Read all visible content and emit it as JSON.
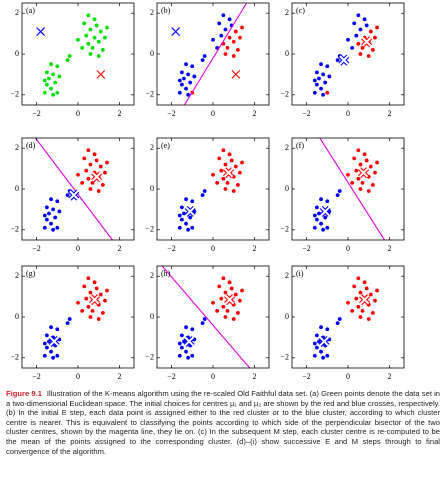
{
  "chart_data": [
    {
      "type": "scatter",
      "label": "(a)",
      "xlim": [
        -2.7,
        2.7
      ],
      "ylim": [
        -2.5,
        2.5
      ],
      "xticks": [
        {
          "value": -2,
          "label": "−2"
        },
        0,
        2
      ],
      "yticks": [
        {
          "value": -2,
          "label": "−2"
        },
        0,
        2
      ],
      "series": [
        {
          "color": "#00e000",
          "x": [
            -1.6,
            -1.5,
            -1.4,
            -1.3,
            -1.2,
            -1.1,
            -1.5,
            -1.0,
            -1.3,
            -0.9,
            -1.6,
            -1.2,
            -1.0,
            -0.5,
            -0.4,
            0.2,
            0.4,
            0.5,
            0.6,
            0.7,
            0.8,
            0.9,
            1.0,
            1.1,
            1.2,
            0.3,
            0.6,
            0.8,
            1.3,
            0.0,
            1.0,
            0.5,
            1.4
          ],
          "values": [
            -1.9,
            -1.5,
            -1.2,
            -1.7,
            -1.0,
            -1.4,
            -0.9,
            -0.6,
            -0.5,
            -1.1,
            -1.3,
            -2.0,
            -1.9,
            -0.3,
            -0.1,
            0.3,
            0.9,
            0.5,
            1.2,
            0.3,
            0.8,
            1.4,
            0.6,
            1.1,
            0.2,
            1.5,
            0.0,
            1.7,
            0.8,
            0.7,
            -0.1,
            1.9,
            1.3
          ]
        }
      ],
      "centre_style": "plain",
      "centres": [
        {
          "color": "#0000ff",
          "x": -1.8,
          "y": 1.1
        },
        {
          "color": "#ff0000",
          "x": 1.1,
          "y": -1.0
        }
      ]
    },
    {
      "type": "scatter",
      "label": "(b)",
      "xlim": [
        -2.7,
        2.7
      ],
      "ylim": [
        -2.5,
        2.5
      ],
      "xticks": [
        {
          "value": -2,
          "label": "−2"
        },
        0,
        2
      ],
      "yticks": [
        {
          "value": -2,
          "label": "−2"
        },
        0,
        2
      ],
      "series": [
        {
          "color": "#0000ff",
          "x": [
            -1.6,
            -1.5,
            -1.4,
            -1.3,
            -1.2,
            -1.1,
            -1.5,
            -1.0,
            -1.3,
            -0.9,
            -1.6,
            -1.2,
            -0.5,
            -0.4,
            0.2,
            0.4,
            0.6,
            0.9,
            0.3,
            0.8,
            0.0,
            0.5
          ],
          "values": [
            -1.9,
            -1.5,
            -1.2,
            -1.7,
            -1.0,
            -1.4,
            -0.9,
            -0.6,
            -0.5,
            -1.1,
            -1.3,
            -2.0,
            -0.3,
            -0.1,
            0.3,
            0.9,
            1.2,
            1.4,
            1.5,
            1.7,
            0.7,
            1.9
          ]
        },
        {
          "color": "#ff0000",
          "x": [
            -1.0,
            0.5,
            0.7,
            0.8,
            1.0,
            1.1,
            1.2,
            0.6,
            1.3,
            1.0,
            1.4
          ],
          "values": [
            -1.9,
            0.5,
            0.3,
            0.8,
            0.6,
            1.1,
            0.2,
            0.0,
            0.8,
            -0.1,
            1.3
          ]
        }
      ],
      "line": {
        "color": "#e000e0",
        "x": [
          -1.38,
          1.62
        ],
        "values": [
          -2.5,
          2.5
        ]
      },
      "centre_style": "plain",
      "centres": [
        {
          "color": "#0000ff",
          "x": -1.8,
          "y": 1.1
        },
        {
          "color": "#ff0000",
          "x": 1.1,
          "y": -1.0
        }
      ]
    },
    {
      "type": "scatter",
      "label": "(c)",
      "xlim": [
        -2.7,
        2.7
      ],
      "ylim": [
        -2.5,
        2.5
      ],
      "xticks": [
        {
          "value": -2,
          "label": "−2"
        },
        0,
        2
      ],
      "yticks": [
        {
          "value": -2,
          "label": "−2"
        },
        0,
        2
      ],
      "series": [
        {
          "color": "#0000ff",
          "x": [
            -1.6,
            -1.5,
            -1.4,
            -1.3,
            -1.2,
            -1.1,
            -1.5,
            -1.0,
            -1.3,
            -0.9,
            -1.6,
            -1.2,
            -0.5,
            -0.4,
            0.2,
            0.4,
            0.6,
            0.9,
            0.3,
            0.8,
            0.0,
            0.5
          ],
          "values": [
            -1.9,
            -1.5,
            -1.2,
            -1.7,
            -1.0,
            -1.4,
            -0.9,
            -0.6,
            -0.5,
            -1.1,
            -1.3,
            -2.0,
            -0.3,
            -0.1,
            0.3,
            0.9,
            1.2,
            1.4,
            1.5,
            1.7,
            0.7,
            1.9
          ]
        },
        {
          "color": "#ff0000",
          "x": [
            -1.0,
            0.5,
            0.7,
            0.8,
            1.0,
            1.1,
            1.2,
            0.6,
            1.3,
            1.0,
            1.4
          ],
          "values": [
            -1.9,
            0.5,
            0.3,
            0.8,
            0.6,
            1.1,
            0.2,
            0.0,
            0.8,
            -0.1,
            1.3
          ]
        }
      ],
      "centre_style": "outlined",
      "centres": [
        {
          "color": "#0000ff",
          "x": -0.2,
          "y": -0.3
        },
        {
          "color": "#ff0000",
          "x": 0.9,
          "y": 0.6
        }
      ]
    },
    {
      "type": "scatter",
      "label": "(d)",
      "xlim": [
        -2.7,
        2.7
      ],
      "ylim": [
        -2.5,
        2.5
      ],
      "xticks": [
        {
          "value": -2,
          "label": "−2"
        },
        0,
        2
      ],
      "yticks": [
        {
          "value": -2,
          "label": "−2"
        },
        0,
        2
      ],
      "series": [
        {
          "color": "#0000ff",
          "x": [
            -1.6,
            -1.5,
            -1.4,
            -1.3,
            -1.2,
            -1.1,
            -1.5,
            -1.0,
            -1.3,
            -0.9,
            -1.6,
            -1.2,
            -1.0,
            -0.5,
            -0.4
          ],
          "values": [
            -1.9,
            -1.5,
            -1.2,
            -1.7,
            -1.0,
            -1.4,
            -0.9,
            -0.6,
            -0.5,
            -1.1,
            -1.3,
            -2.0,
            -1.9,
            -0.3,
            -0.1
          ]
        },
        {
          "color": "#ff0000",
          "x": [
            0.2,
            0.4,
            0.5,
            0.6,
            0.7,
            0.8,
            0.9,
            1.0,
            1.1,
            1.2,
            0.3,
            0.6,
            0.8,
            1.3,
            0.0,
            1.0,
            0.5,
            1.4
          ],
          "values": [
            0.3,
            0.9,
            0.5,
            1.2,
            0.3,
            0.8,
            1.4,
            0.6,
            1.1,
            0.2,
            1.5,
            0.0,
            1.7,
            0.8,
            0.7,
            -0.1,
            1.9,
            1.3
          ]
        }
      ],
      "line": {
        "color": "#e000e0",
        "x": [
          -2.05,
          1.66
        ],
        "values": [
          2.5,
          -2.5
        ]
      },
      "centre_style": "outlined",
      "centres": [
        {
          "color": "#0000ff",
          "x": -0.2,
          "y": -0.3
        },
        {
          "color": "#ff0000",
          "x": 0.9,
          "y": 0.6
        }
      ]
    },
    {
      "type": "scatter",
      "label": "(e)",
      "xlim": [
        -2.7,
        2.7
      ],
      "ylim": [
        -2.5,
        2.5
      ],
      "xticks": [
        {
          "value": -2,
          "label": "−2"
        },
        0,
        2
      ],
      "yticks": [
        {
          "value": -2,
          "label": "−2"
        },
        0,
        2
      ],
      "series": [
        {
          "color": "#0000ff",
          "x": [
            -1.6,
            -1.5,
            -1.4,
            -1.3,
            -1.2,
            -1.1,
            -1.5,
            -1.0,
            -1.3,
            -0.9,
            -1.6,
            -1.2,
            -1.0,
            -0.5,
            -0.4
          ],
          "values": [
            -1.9,
            -1.5,
            -1.2,
            -1.7,
            -1.0,
            -1.4,
            -0.9,
            -0.6,
            -0.5,
            -1.1,
            -1.3,
            -2.0,
            -1.9,
            -0.3,
            -0.1
          ]
        },
        {
          "color": "#ff0000",
          "x": [
            0.2,
            0.4,
            0.5,
            0.6,
            0.7,
            0.8,
            0.9,
            1.0,
            1.1,
            1.2,
            0.3,
            0.6,
            0.8,
            1.3,
            0.0,
            1.0,
            0.5,
            1.4
          ],
          "values": [
            0.3,
            0.9,
            0.5,
            1.2,
            0.3,
            0.8,
            1.4,
            0.6,
            1.1,
            0.2,
            1.5,
            0.0,
            1.7,
            0.8,
            0.7,
            -0.1,
            1.9,
            1.3
          ]
        }
      ],
      "centre_style": "outlined",
      "centres": [
        {
          "color": "#0000ff",
          "x": -1.1,
          "y": -1.1
        },
        {
          "color": "#ff0000",
          "x": 0.75,
          "y": 0.8
        }
      ]
    },
    {
      "type": "scatter",
      "label": "(f)",
      "xlim": [
        -2.7,
        2.7
      ],
      "ylim": [
        -2.5,
        2.5
      ],
      "xticks": [
        {
          "value": -2,
          "label": "−2"
        },
        0,
        2
      ],
      "yticks": [
        {
          "value": -2,
          "label": "−2"
        },
        0,
        2
      ],
      "series": [
        {
          "color": "#0000ff",
          "x": [
            -1.6,
            -1.5,
            -1.4,
            -1.3,
            -1.2,
            -1.1,
            -1.5,
            -1.0,
            -1.3,
            -0.9,
            -1.6,
            -1.2,
            -1.0,
            -0.5,
            -0.4
          ],
          "values": [
            -1.9,
            -1.5,
            -1.2,
            -1.7,
            -1.0,
            -1.4,
            -0.9,
            -0.6,
            -0.5,
            -1.1,
            -1.3,
            -2.0,
            -1.9,
            -0.3,
            -0.1
          ]
        },
        {
          "color": "#ff0000",
          "x": [
            0.2,
            0.4,
            0.5,
            0.6,
            0.7,
            0.8,
            0.9,
            1.0,
            1.1,
            1.2,
            0.3,
            0.6,
            0.8,
            1.3,
            0.0,
            1.0,
            0.5,
            1.4
          ],
          "values": [
            0.3,
            0.9,
            0.5,
            1.2,
            0.3,
            0.8,
            1.4,
            0.6,
            1.1,
            0.2,
            1.5,
            0.0,
            1.7,
            0.8,
            0.7,
            -0.1,
            1.9,
            1.3
          ]
        }
      ],
      "line": {
        "color": "#e000e0",
        "x": [
          -1.36,
          1.76
        ],
        "values": [
          2.5,
          -2.5
        ]
      },
      "centre_style": "outlined",
      "centres": [
        {
          "color": "#0000ff",
          "x": -1.1,
          "y": -1.1
        },
        {
          "color": "#ff0000",
          "x": 0.75,
          "y": 0.8
        }
      ]
    },
    {
      "type": "scatter",
      "label": "(g)",
      "xlim": [
        -2.7,
        2.7
      ],
      "ylim": [
        -2.5,
        2.5
      ],
      "xticks": [
        {
          "value": -2,
          "label": "−2"
        },
        0,
        2
      ],
      "yticks": [
        {
          "value": -2,
          "label": "−2"
        },
        0,
        2
      ],
      "series": [
        {
          "color": "#0000ff",
          "x": [
            -1.6,
            -1.5,
            -1.4,
            -1.3,
            -1.2,
            -1.1,
            -1.5,
            -1.0,
            -1.3,
            -0.9,
            -1.6,
            -1.2,
            -1.0,
            -0.5,
            -0.4
          ],
          "values": [
            -1.9,
            -1.5,
            -1.2,
            -1.7,
            -1.0,
            -1.4,
            -0.9,
            -0.6,
            -0.5,
            -1.1,
            -1.3,
            -2.0,
            -1.9,
            -0.3,
            -0.1
          ]
        },
        {
          "color": "#ff0000",
          "x": [
            0.2,
            0.4,
            0.5,
            0.6,
            0.7,
            0.8,
            0.9,
            1.0,
            1.1,
            1.2,
            0.3,
            0.6,
            0.8,
            1.3,
            0.0,
            1.0,
            0.5,
            1.4
          ],
          "values": [
            0.3,
            0.9,
            0.5,
            1.2,
            0.3,
            0.8,
            1.4,
            0.6,
            1.1,
            0.2,
            1.5,
            0.0,
            1.7,
            0.8,
            0.7,
            -0.1,
            1.9,
            1.3
          ]
        }
      ],
      "centre_style": "outlined",
      "centres": [
        {
          "color": "#0000ff",
          "x": -1.15,
          "y": -1.2
        },
        {
          "color": "#ff0000",
          "x": 0.8,
          "y": 0.85
        }
      ]
    },
    {
      "type": "scatter",
      "label": "(h)",
      "xlim": [
        -2.7,
        2.7
      ],
      "ylim": [
        -2.5,
        2.5
      ],
      "xticks": [
        {
          "value": -2,
          "label": "−2"
        },
        0,
        2
      ],
      "yticks": [
        {
          "value": -2,
          "label": "−2"
        },
        0,
        2
      ],
      "series": [
        {
          "color": "#0000ff",
          "x": [
            -1.6,
            -1.5,
            -1.4,
            -1.3,
            -1.2,
            -1.1,
            -1.5,
            -1.0,
            -1.3,
            -0.9,
            -1.6,
            -1.2,
            -1.0,
            -0.5,
            -0.4
          ],
          "values": [
            -1.9,
            -1.5,
            -1.2,
            -1.7,
            -1.0,
            -1.4,
            -0.9,
            -0.6,
            -0.5,
            -1.1,
            -1.3,
            -2.0,
            -1.9,
            -0.3,
            -0.1
          ]
        },
        {
          "color": "#ff0000",
          "x": [
            0.2,
            0.4,
            0.5,
            0.6,
            0.7,
            0.8,
            0.9,
            1.0,
            1.1,
            1.2,
            0.3,
            0.6,
            0.8,
            1.3,
            0.0,
            1.0,
            0.5,
            1.4
          ],
          "values": [
            0.3,
            0.9,
            0.5,
            1.2,
            0.3,
            0.8,
            1.4,
            0.6,
            1.1,
            0.2,
            1.5,
            0.0,
            1.7,
            0.8,
            0.7,
            -0.1,
            1.9,
            1.3
          ]
        }
      ],
      "line": {
        "color": "#e000e0",
        "x": [
          -2.45,
          1.77
        ],
        "values": [
          2.5,
          -2.5
        ]
      },
      "centre_style": "outlined",
      "centres": [
        {
          "color": "#0000ff",
          "x": -1.15,
          "y": -1.2
        },
        {
          "color": "#ff0000",
          "x": 0.8,
          "y": 0.85
        }
      ]
    },
    {
      "type": "scatter",
      "label": "(i)",
      "xlim": [
        -2.7,
        2.7
      ],
      "ylim": [
        -2.5,
        2.5
      ],
      "xticks": [
        {
          "value": -2,
          "label": "−2"
        },
        0,
        2
      ],
      "yticks": [
        {
          "value": -2,
          "label": "−2"
        },
        0,
        2
      ],
      "series": [
        {
          "color": "#0000ff",
          "x": [
            -1.6,
            -1.5,
            -1.4,
            -1.3,
            -1.2,
            -1.1,
            -1.5,
            -1.0,
            -1.3,
            -0.9,
            -1.6,
            -1.2,
            -1.0,
            -0.5,
            -0.4
          ],
          "values": [
            -1.9,
            -1.5,
            -1.2,
            -1.7,
            -1.0,
            -1.4,
            -0.9,
            -0.6,
            -0.5,
            -1.1,
            -1.3,
            -2.0,
            -1.9,
            -0.3,
            -0.1
          ]
        },
        {
          "color": "#ff0000",
          "x": [
            0.2,
            0.4,
            0.5,
            0.6,
            0.7,
            0.8,
            0.9,
            1.0,
            1.1,
            1.2,
            0.3,
            0.6,
            0.8,
            1.3,
            0.0,
            1.0,
            0.5,
            1.4
          ],
          "values": [
            0.3,
            0.9,
            0.5,
            1.2,
            0.3,
            0.8,
            1.4,
            0.6,
            1.1,
            0.2,
            1.5,
            0.0,
            1.7,
            0.8,
            0.7,
            -0.1,
            1.9,
            1.3
          ]
        }
      ],
      "centre_style": "outlined",
      "centres": [
        {
          "color": "#0000ff",
          "x": -1.15,
          "y": -1.2
        },
        {
          "color": "#ff0000",
          "x": 0.8,
          "y": 0.85
        }
      ]
    }
  ],
  "caption": {
    "label": "Figure 9.1",
    "text": "Illustration of the K-means algorithm using the re-scaled Old Faithful data set. (a) Green points denote the data set in a two-dimensional Euclidean space. The initial choices for centres μ₁ and μ₂ are shown by the red and blue crosses, respectively. (b) In the initial E step, each data point is assigned either to the red cluster or to the blue cluster, according to which cluster centre is nearer. This is equivalent to classifying the points according to which side of the perpendicular bisector of the two cluster centres, shown by the magenta line, they lie on. (c) In the subsequent M step, each cluster centre is re-computed to be the mean of the points assigned to the corresponding cluster. (d)–(i) show successive E and M steps through to final convergence of the algorithm."
  }
}
